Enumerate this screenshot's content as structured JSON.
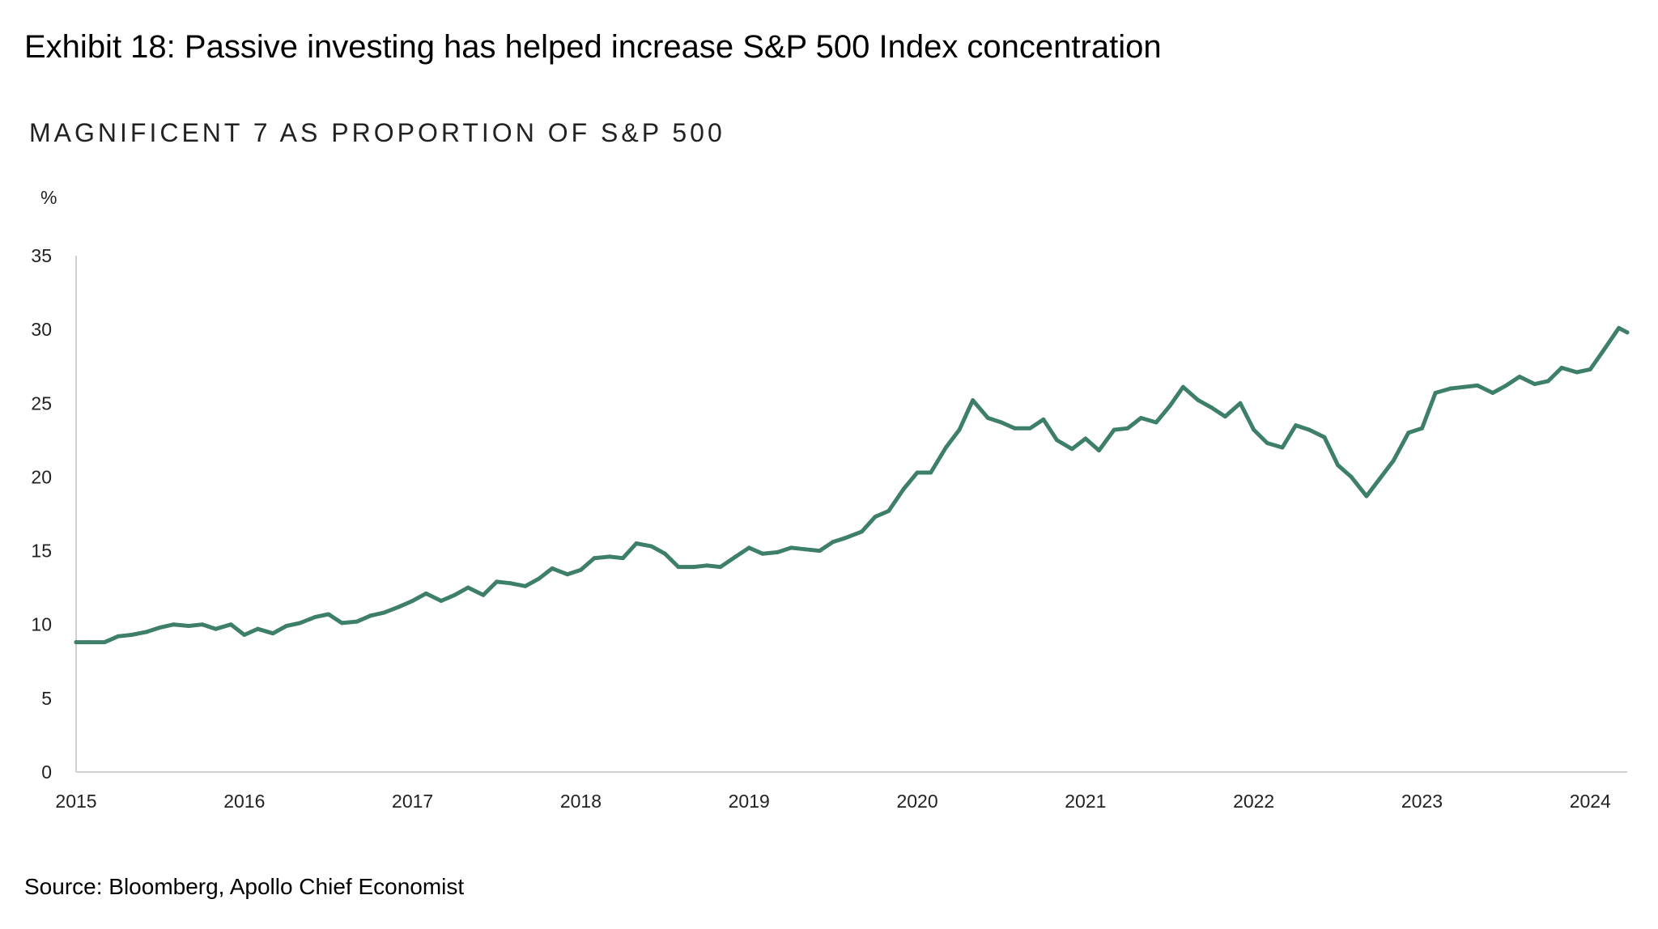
{
  "exhibit_title": "Exhibit 18: Passive investing has helped increase S&P 500 Index concentration",
  "source": "Source: Bloomberg, Apollo Chief Economist",
  "colors": {
    "line": "#3d7f68",
    "axis": "#d0d0d0",
    "text": "#222222"
  },
  "chart_data": {
    "type": "line",
    "title": "MAGNIFICENT 7 AS PROPORTION OF S&P 500",
    "ylabel": "%",
    "xlabel": "",
    "ylim": [
      0,
      35
    ],
    "xlim": [
      2015,
      2024.22
    ],
    "yticks": [
      0,
      5,
      10,
      15,
      20,
      25,
      30,
      35
    ],
    "xticks": [
      2015,
      2016,
      2017,
      2018,
      2019,
      2020,
      2021,
      2022,
      2023,
      2024
    ],
    "grid": false,
    "series": [
      {
        "name": "",
        "x": [
          2015.0,
          2015.08,
          2015.17,
          2015.25,
          2015.33,
          2015.42,
          2015.5,
          2015.58,
          2015.67,
          2015.75,
          2015.83,
          2015.92,
          2016.0,
          2016.08,
          2016.17,
          2016.25,
          2016.33,
          2016.42,
          2016.5,
          2016.58,
          2016.67,
          2016.75,
          2016.83,
          2016.92,
          2017.0,
          2017.08,
          2017.17,
          2017.25,
          2017.33,
          2017.42,
          2017.5,
          2017.58,
          2017.67,
          2017.75,
          2017.83,
          2017.92,
          2018.0,
          2018.08,
          2018.17,
          2018.25,
          2018.33,
          2018.42,
          2018.5,
          2018.58,
          2018.67,
          2018.75,
          2018.83,
          2018.92,
          2019.0,
          2019.08,
          2019.17,
          2019.25,
          2019.33,
          2019.42,
          2019.5,
          2019.58,
          2019.67,
          2019.75,
          2019.83,
          2019.92,
          2020.0,
          2020.08,
          2020.17,
          2020.25,
          2020.33,
          2020.42,
          2020.5,
          2020.58,
          2020.67,
          2020.75,
          2020.83,
          2020.92,
          2021.0,
          2021.08,
          2021.17,
          2021.25,
          2021.33,
          2021.42,
          2021.5,
          2021.58,
          2021.67,
          2021.75,
          2021.83,
          2021.92,
          2022.0,
          2022.08,
          2022.17,
          2022.25,
          2022.33,
          2022.42,
          2022.5,
          2022.58,
          2022.67,
          2022.75,
          2022.83,
          2022.92,
          2023.0,
          2023.08,
          2023.17,
          2023.25,
          2023.33,
          2023.42,
          2023.5,
          2023.58,
          2023.67,
          2023.75,
          2023.83,
          2023.92,
          2024.0,
          2024.08,
          2024.17,
          2024.22
        ],
        "values": [
          8.8,
          8.8,
          8.8,
          9.2,
          9.3,
          9.5,
          9.8,
          10.0,
          9.9,
          10.0,
          9.7,
          10.0,
          9.3,
          9.7,
          9.4,
          9.9,
          10.1,
          10.5,
          10.7,
          10.1,
          10.2,
          10.6,
          10.8,
          11.2,
          11.6,
          12.1,
          11.6,
          12.0,
          12.5,
          12.0,
          12.9,
          12.8,
          12.6,
          13.1,
          13.8,
          13.4,
          13.7,
          14.5,
          14.6,
          14.5,
          15.5,
          15.3,
          14.8,
          13.9,
          13.9,
          14.0,
          13.9,
          14.6,
          15.2,
          14.8,
          14.9,
          15.2,
          15.1,
          15.0,
          15.6,
          15.9,
          16.3,
          17.3,
          17.7,
          19.2,
          20.3,
          20.3,
          22.0,
          23.2,
          25.2,
          24.0,
          23.7,
          23.3,
          23.3,
          23.9,
          22.5,
          21.9,
          22.6,
          21.8,
          23.2,
          23.3,
          24.0,
          23.7,
          24.8,
          26.1,
          25.2,
          24.7,
          24.1,
          25.0,
          23.2,
          22.3,
          22.0,
          23.5,
          23.2,
          22.7,
          20.8,
          20.0,
          18.7,
          19.9,
          21.1,
          23.0,
          23.3,
          25.7,
          26.0,
          26.1,
          26.2,
          25.7,
          26.2,
          26.8,
          26.3,
          26.5,
          27.4,
          27.1,
          27.3,
          28.6,
          30.1,
          29.8
        ]
      }
    ]
  }
}
